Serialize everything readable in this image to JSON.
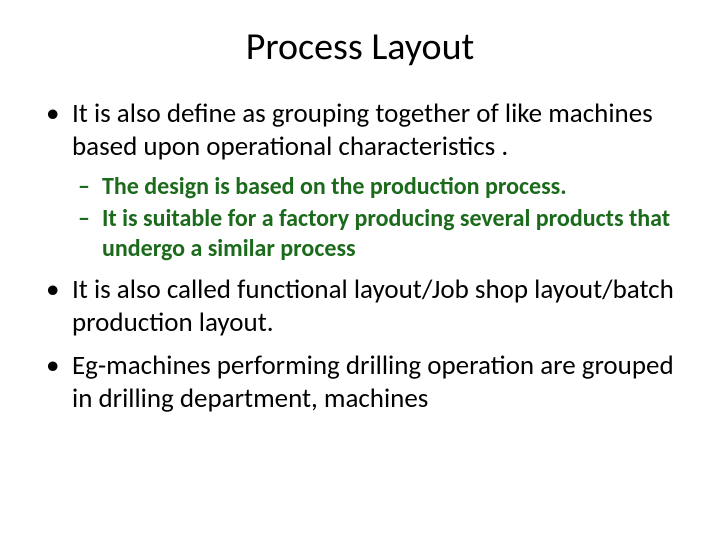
{
  "slide": {
    "title": "Process Layout",
    "bullets": {
      "b1": "It is also define as grouping together of like machines based upon operational characteristics .",
      "sub": {
        "s1": "The design is based on the production process.",
        "s2": "It is suitable for a factory producing several products that undergo a similar process"
      },
      "b2": "It is also called functional layout/Job shop layout/batch production layout.",
      "b3": "Eg-machines performing drilling operation are grouped  in drilling   department, machines"
    }
  },
  "colors": {
    "text_primary": "#000000",
    "text_accent": "#1c6b1c",
    "background": "#ffffff"
  },
  "typography": {
    "title_fontsize": 38,
    "body_fontsize": 27,
    "sub_fontsize": 24,
    "font_family": "Calibri"
  }
}
